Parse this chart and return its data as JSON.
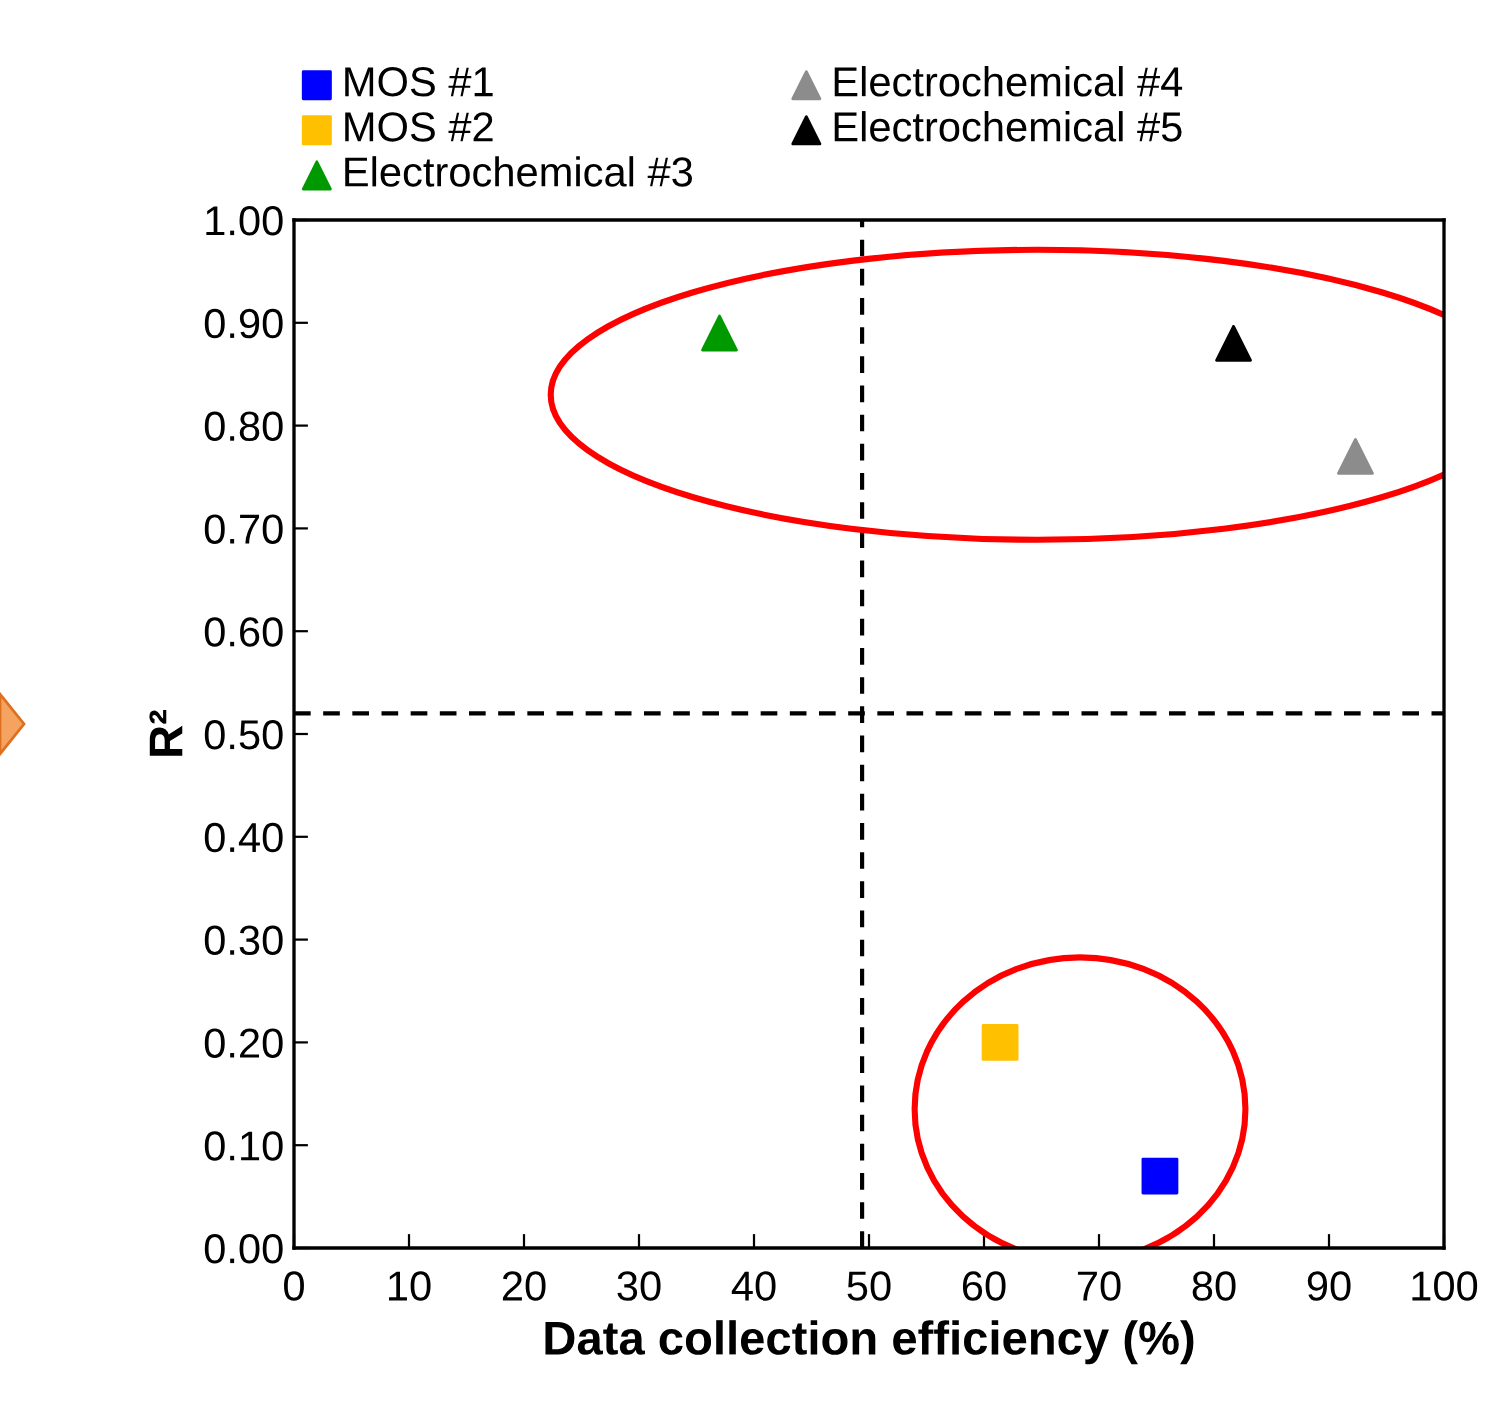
{
  "chart_data": {
    "type": "scatter",
    "xlabel": "Data collection efficiency (%)",
    "ylabel": "R²",
    "xlim": [
      0,
      100
    ],
    "xticks": [
      0,
      10,
      20,
      30,
      40,
      50,
      60,
      70,
      80,
      90,
      100
    ],
    "ylim": [
      0,
      1
    ],
    "yticks": [
      {
        "value": 0,
        "label": "0.00"
      },
      {
        "value": 0.1,
        "label": "0.10"
      },
      {
        "value": 0.2,
        "label": "0.20"
      },
      {
        "value": 0.3,
        "label": "0.30"
      },
      {
        "value": 0.4,
        "label": "0.40"
      },
      {
        "value": 0.5,
        "label": "0.50"
      },
      {
        "value": 0.6,
        "label": "0.60"
      },
      {
        "value": 0.7,
        "label": "0.70"
      },
      {
        "value": 0.8,
        "label": "0.80"
      },
      {
        "value": 0.9,
        "label": "0.90"
      },
      {
        "value": 1,
        "label": "1.00"
      }
    ],
    "grid": false,
    "legend": "top",
    "series": [
      {
        "name": "MOS #1",
        "color": "#0000ff",
        "marker": "square",
        "x": [
          75.3
        ],
        "values": [
          0.07
        ]
      },
      {
        "name": "MOS #2",
        "color": "#ffc000",
        "marker": "square",
        "x": [
          61.4
        ],
        "values": [
          0.2
        ]
      },
      {
        "name": "Electrochemical #3",
        "color": "#009900",
        "marker": "triangle",
        "x": [
          37
        ],
        "values": [
          0.89
        ]
      },
      {
        "name": "Electrochemical #4",
        "color": "#8c8c8c",
        "marker": "triangle",
        "x": [
          92.3
        ],
        "values": [
          0.77
        ]
      },
      {
        "name": "Electrochemical #5",
        "color": "#000000",
        "marker": "triangle",
        "x": [
          81.7
        ],
        "values": [
          0.88
        ]
      }
    ],
    "ref_lines": [
      {
        "axis": "x",
        "value": 49.4,
        "color": "#000000",
        "line_style": "dashed"
      },
      {
        "axis": "y",
        "value": 0.52,
        "color": "#000000",
        "line_style": "dashed"
      }
    ]
  }
}
